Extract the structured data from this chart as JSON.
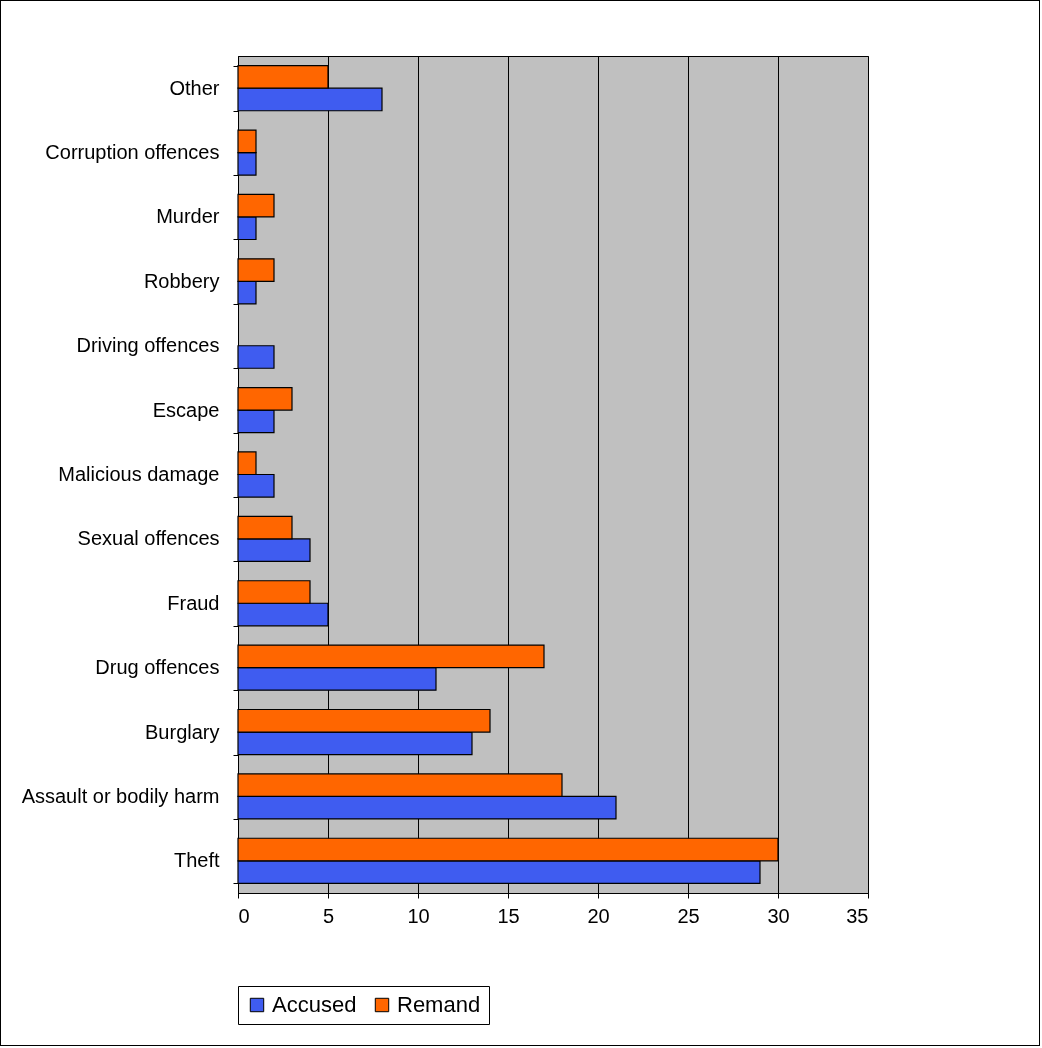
{
  "chart_data": {
    "type": "bar",
    "orientation": "horizontal",
    "categories": [
      "Other",
      "Corruption offences",
      "Murder",
      "Robbery",
      "Driving offences",
      "Escape",
      "Malicious damage",
      "Sexual offences",
      "Fraud",
      "Drug offences",
      "Burglary",
      "Assault or bodily harm",
      "Theft"
    ],
    "series": [
      {
        "name": "Accused",
        "color": "#3f5cf0",
        "values": [
          8,
          1,
          1,
          1,
          2,
          2,
          2,
          4,
          5,
          11,
          13,
          21,
          29
        ]
      },
      {
        "name": "Remand",
        "color": "#ff6600",
        "values": [
          5,
          1,
          2,
          2,
          null,
          3,
          1,
          3,
          4,
          17,
          14,
          18,
          30
        ]
      }
    ],
    "xlim": [
      0,
      35
    ],
    "xticks": [
      0,
      5,
      10,
      15,
      20,
      25,
      30,
      35
    ],
    "grid": "x",
    "legend": "bottom"
  }
}
